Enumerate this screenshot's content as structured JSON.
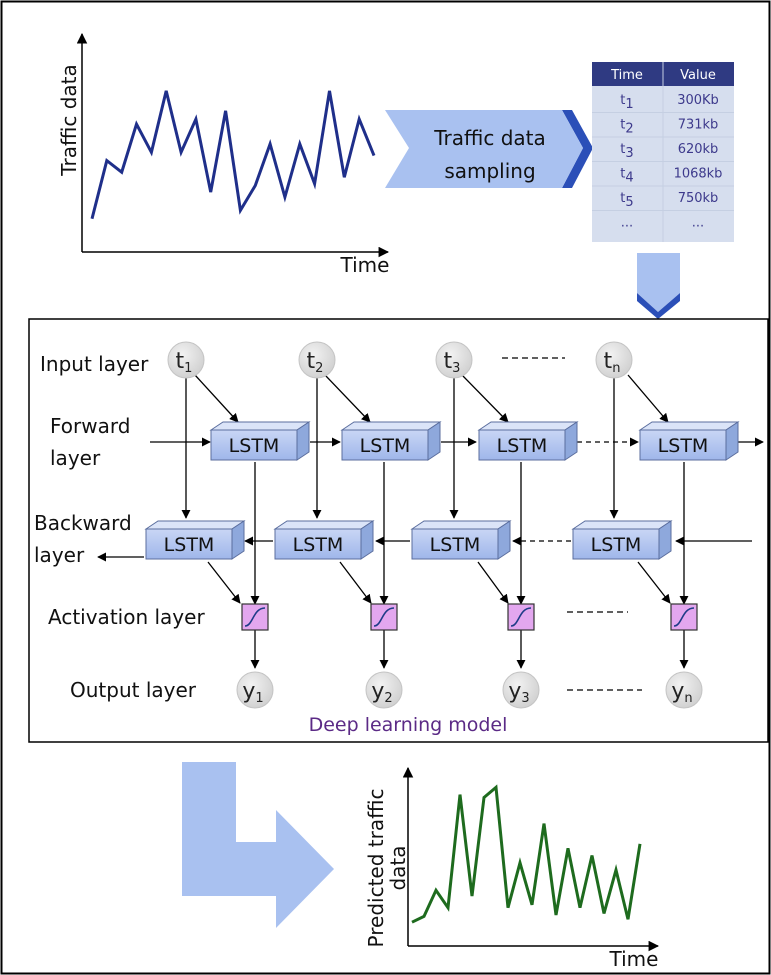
{
  "top_chart": {
    "ylabel": "Traffic data",
    "xlabel": "Time",
    "line_color": "#1f2f8a",
    "series": [
      5,
      40,
      33,
      62,
      45,
      82,
      45,
      65,
      21,
      70,
      10,
      25,
      50,
      18,
      50,
      26,
      82,
      30,
      65,
      43
    ]
  },
  "sampling": {
    "line1": "Traffic data",
    "line2": "sampling"
  },
  "table": {
    "headers": [
      "Time",
      "Value"
    ],
    "rows": [
      {
        "time": "t",
        "sub": "1",
        "value": "300Kb"
      },
      {
        "time": "t",
        "sub": "2",
        "value": "731kb"
      },
      {
        "time": "t",
        "sub": "3",
        "value": "620kb"
      },
      {
        "time": "t",
        "sub": "4",
        "value": "1068kb"
      },
      {
        "time": "t",
        "sub": "5",
        "value": "750kb"
      },
      {
        "time": "...",
        "sub": "",
        "value": "..."
      }
    ]
  },
  "model": {
    "layers": {
      "input": "Input layer",
      "forward_1": "Forward",
      "forward_2": "layer",
      "backward_1": "Backward",
      "backward_2": "layer",
      "activation": "Activation layer",
      "output": "Output layer"
    },
    "lstm_label": "LSTM",
    "inputs": [
      {
        "base": "t",
        "sub": "1"
      },
      {
        "base": "t",
        "sub": "2"
      },
      {
        "base": "t",
        "sub": "3"
      },
      {
        "base": "t",
        "sub": "n"
      }
    ],
    "outputs": [
      {
        "base": "y",
        "sub": "1"
      },
      {
        "base": "y",
        "sub": "2"
      },
      {
        "base": "y",
        "sub": "3"
      },
      {
        "base": "y",
        "sub": "n"
      }
    ],
    "title": "Deep learning model",
    "title_color": "#5b2a86"
  },
  "bottom_chart": {
    "ylabel_1": "Predicted traffic",
    "ylabel_2": "data",
    "xlabel": "Time",
    "line_color": "#1e6b1e",
    "series": [
      4,
      8,
      26,
      14,
      92,
      22,
      90,
      97,
      14,
      45,
      16,
      72,
      9,
      55,
      14,
      50,
      10,
      40,
      6,
      58
    ]
  }
}
